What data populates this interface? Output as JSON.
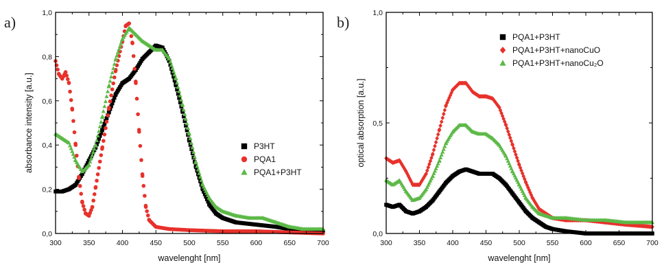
{
  "chart_data": [
    {
      "panel_label": "a)",
      "type": "scatter",
      "xlabel": "wavelenght [nm]",
      "ylabel": "absorbance intensity [a.u.]",
      "xlim": [
        300,
        700
      ],
      "ylim": [
        0,
        1.0
      ],
      "xticks": [
        "300",
        "350",
        "400",
        "450",
        "500",
        "550",
        "600",
        "650",
        "700"
      ],
      "yticks": [
        "0,0",
        "0,2",
        "0,4",
        "0,6",
        "0,8",
        "1,0"
      ],
      "legend_position": "right-middle",
      "series": [
        {
          "name": "P3HT",
          "color": "#000000",
          "marker": "square",
          "points": [
            [
              300,
              0.19
            ],
            [
              310,
              0.19
            ],
            [
              320,
              0.2
            ],
            [
              330,
              0.22
            ],
            [
              340,
              0.27
            ],
            [
              350,
              0.33
            ],
            [
              360,
              0.39
            ],
            [
              370,
              0.47
            ],
            [
              380,
              0.55
            ],
            [
              390,
              0.63
            ],
            [
              400,
              0.68
            ],
            [
              410,
              0.7
            ],
            [
              420,
              0.74
            ],
            [
              430,
              0.79
            ],
            [
              440,
              0.82
            ],
            [
              450,
              0.85
            ],
            [
              460,
              0.84
            ],
            [
              470,
              0.78
            ],
            [
              480,
              0.67
            ],
            [
              490,
              0.55
            ],
            [
              500,
              0.42
            ],
            [
              510,
              0.3
            ],
            [
              520,
              0.2
            ],
            [
              530,
              0.13
            ],
            [
              540,
              0.09
            ],
            [
              550,
              0.07
            ],
            [
              570,
              0.05
            ],
            [
              600,
              0.04
            ],
            [
              630,
              0.03
            ],
            [
              650,
              0.02
            ],
            [
              670,
              0.015
            ],
            [
              700,
              0.01
            ]
          ]
        },
        {
          "name": "PQA1",
          "color": "#e8312b",
          "marker": "circle",
          "points": [
            [
              300,
              0.78
            ],
            [
              305,
              0.72
            ],
            [
              310,
              0.7
            ],
            [
              315,
              0.73
            ],
            [
              320,
              0.68
            ],
            [
              325,
              0.56
            ],
            [
              330,
              0.4
            ],
            [
              335,
              0.25
            ],
            [
              340,
              0.14
            ],
            [
              345,
              0.09
            ],
            [
              350,
              0.08
            ],
            [
              355,
              0.12
            ],
            [
              360,
              0.21
            ],
            [
              370,
              0.39
            ],
            [
              380,
              0.57
            ],
            [
              390,
              0.74
            ],
            [
              400,
              0.87
            ],
            [
              405,
              0.94
            ],
            [
              410,
              0.95
            ],
            [
              415,
              0.86
            ],
            [
              420,
              0.68
            ],
            [
              425,
              0.46
            ],
            [
              430,
              0.26
            ],
            [
              435,
              0.12
            ],
            [
              440,
              0.06
            ],
            [
              450,
              0.03
            ],
            [
              470,
              0.02
            ],
            [
              500,
              0.015
            ],
            [
              550,
              0.01
            ],
            [
              600,
              0.01
            ],
            [
              650,
              0.005
            ],
            [
              700,
              0.0
            ]
          ]
        },
        {
          "name": "PQA1+P3HT",
          "color": "#5cb947",
          "marker": "triangle",
          "points": [
            [
              300,
              0.45
            ],
            [
              310,
              0.43
            ],
            [
              320,
              0.41
            ],
            [
              330,
              0.33
            ],
            [
              340,
              0.28
            ],
            [
              350,
              0.31
            ],
            [
              360,
              0.4
            ],
            [
              370,
              0.53
            ],
            [
              380,
              0.67
            ],
            [
              390,
              0.79
            ],
            [
              400,
              0.88
            ],
            [
              410,
              0.93
            ],
            [
              420,
              0.9
            ],
            [
              430,
              0.87
            ],
            [
              440,
              0.85
            ],
            [
              450,
              0.83
            ],
            [
              460,
              0.83
            ],
            [
              470,
              0.79
            ],
            [
              480,
              0.7
            ],
            [
              490,
              0.58
            ],
            [
              500,
              0.45
            ],
            [
              510,
              0.32
            ],
            [
              520,
              0.22
            ],
            [
              530,
              0.16
            ],
            [
              540,
              0.12
            ],
            [
              550,
              0.1
            ],
            [
              570,
              0.08
            ],
            [
              590,
              0.07
            ],
            [
              610,
              0.07
            ],
            [
              630,
              0.05
            ],
            [
              650,
              0.03
            ],
            [
              670,
              0.02
            ],
            [
              700,
              0.02
            ]
          ]
        }
      ]
    },
    {
      "panel_label": "b)",
      "type": "scatter",
      "xlabel": "wavelenght [nm]",
      "ylabel": "optical absorption  [a.u.]",
      "xlim": [
        300,
        700
      ],
      "ylim": [
        0,
        1.0
      ],
      "xticks": [
        "300",
        "350",
        "400",
        "450",
        "500",
        "550",
        "600",
        "650",
        "700"
      ],
      "yticks": [
        "0,0",
        "0,5",
        "1,0"
      ],
      "legend_position": "top-right",
      "series": [
        {
          "name": "PQA1+P3HT",
          "color": "#000000",
          "marker": "square",
          "points": [
            [
              300,
              0.13
            ],
            [
              310,
              0.12
            ],
            [
              320,
              0.13
            ],
            [
              330,
              0.1
            ],
            [
              340,
              0.09
            ],
            [
              350,
              0.1
            ],
            [
              360,
              0.12
            ],
            [
              370,
              0.15
            ],
            [
              380,
              0.19
            ],
            [
              390,
              0.23
            ],
            [
              400,
              0.26
            ],
            [
              410,
              0.28
            ],
            [
              420,
              0.29
            ],
            [
              430,
              0.28
            ],
            [
              440,
              0.27
            ],
            [
              450,
              0.27
            ],
            [
              460,
              0.27
            ],
            [
              470,
              0.25
            ],
            [
              480,
              0.22
            ],
            [
              490,
              0.18
            ],
            [
              500,
              0.14
            ],
            [
              510,
              0.1
            ],
            [
              520,
              0.07
            ],
            [
              530,
              0.05
            ],
            [
              540,
              0.03
            ],
            [
              550,
              0.02
            ],
            [
              570,
              0.01
            ],
            [
              600,
              0.0
            ],
            [
              650,
              0.0
            ],
            [
              700,
              0.0
            ]
          ]
        },
        {
          "name": "PQA1+P3HT+nanoCuO",
          "color": "#e8312b",
          "marker": "diamond",
          "points": [
            [
              300,
              0.34
            ],
            [
              310,
              0.32
            ],
            [
              320,
              0.33
            ],
            [
              330,
              0.28
            ],
            [
              340,
              0.22
            ],
            [
              350,
              0.22
            ],
            [
              360,
              0.27
            ],
            [
              370,
              0.36
            ],
            [
              380,
              0.47
            ],
            [
              390,
              0.58
            ],
            [
              400,
              0.65
            ],
            [
              410,
              0.68
            ],
            [
              420,
              0.68
            ],
            [
              430,
              0.64
            ],
            [
              440,
              0.62
            ],
            [
              450,
              0.62
            ],
            [
              460,
              0.61
            ],
            [
              470,
              0.57
            ],
            [
              480,
              0.49
            ],
            [
              490,
              0.4
            ],
            [
              500,
              0.31
            ],
            [
              510,
              0.23
            ],
            [
              520,
              0.16
            ],
            [
              530,
              0.11
            ],
            [
              540,
              0.09
            ],
            [
              550,
              0.07
            ],
            [
              570,
              0.06
            ],
            [
              600,
              0.06
            ],
            [
              630,
              0.05
            ],
            [
              660,
              0.04
            ],
            [
              700,
              0.03
            ]
          ]
        },
        {
          "name": "PQA1+P3HT+nanoCu₂O",
          "color": "#5cb947",
          "marker": "triangle",
          "points": [
            [
              300,
              0.24
            ],
            [
              310,
              0.22
            ],
            [
              320,
              0.24
            ],
            [
              330,
              0.19
            ],
            [
              340,
              0.15
            ],
            [
              350,
              0.16
            ],
            [
              360,
              0.2
            ],
            [
              370,
              0.26
            ],
            [
              380,
              0.33
            ],
            [
              390,
              0.41
            ],
            [
              400,
              0.46
            ],
            [
              410,
              0.49
            ],
            [
              420,
              0.49
            ],
            [
              430,
              0.46
            ],
            [
              440,
              0.45
            ],
            [
              450,
              0.45
            ],
            [
              460,
              0.43
            ],
            [
              470,
              0.4
            ],
            [
              480,
              0.35
            ],
            [
              490,
              0.28
            ],
            [
              500,
              0.22
            ],
            [
              510,
              0.16
            ],
            [
              520,
              0.12
            ],
            [
              530,
              0.09
            ],
            [
              540,
              0.08
            ],
            [
              550,
              0.07
            ],
            [
              570,
              0.07
            ],
            [
              600,
              0.06
            ],
            [
              630,
              0.06
            ],
            [
              660,
              0.05
            ],
            [
              700,
              0.05
            ]
          ]
        }
      ]
    }
  ]
}
